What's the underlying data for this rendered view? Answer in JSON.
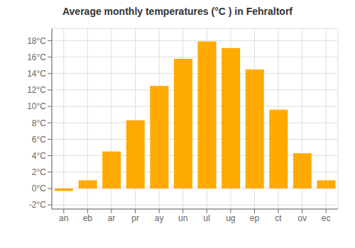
{
  "chart_data": {
    "type": "bar",
    "title": "Average monthly temperatures (°C ) in Fehraltorf",
    "categories": [
      "an",
      "eb",
      "ar",
      "pr",
      "ay",
      "un",
      "ul",
      "ug",
      "ep",
      "ct",
      "ov",
      "ec"
    ],
    "values": [
      -0.3,
      1.0,
      4.5,
      8.3,
      12.5,
      15.8,
      17.9,
      17.1,
      14.5,
      9.6,
      4.3,
      1.0
    ],
    "color": "#FFAA00",
    "ylim": [
      -2.5,
      19.5
    ],
    "yticks": [
      {
        "value": -2,
        "label": "-2°C"
      },
      {
        "value": 0,
        "label": "0°C"
      },
      {
        "value": 2,
        "label": "2°C"
      },
      {
        "value": 4,
        "label": "4°C"
      },
      {
        "value": 6,
        "label": "6°C"
      },
      {
        "value": 8,
        "label": "8°C"
      },
      {
        "value": 10,
        "label": "10°C"
      },
      {
        "value": 12,
        "label": "12°C"
      },
      {
        "value": 14,
        "label": "14°C"
      },
      {
        "value": 16,
        "label": "16°C"
      },
      {
        "value": 18,
        "label": "18°C"
      }
    ],
    "grid": true
  }
}
